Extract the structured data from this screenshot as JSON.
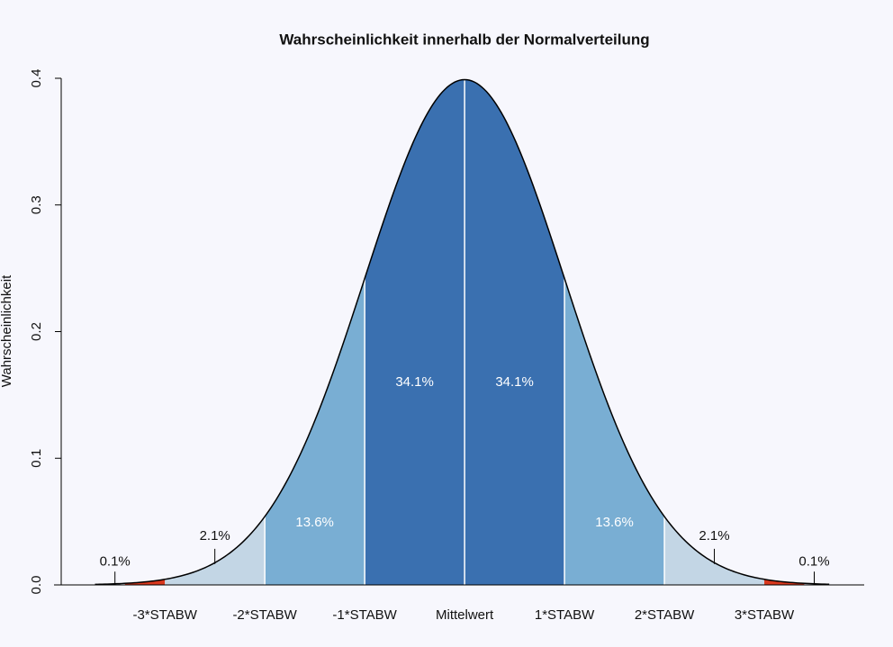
{
  "chart_data": {
    "type": "normal-area",
    "title": "Wahrscheinlichkeit innerhalb der Normalverteilung",
    "ylabel": "Wahrscheinlichkeit",
    "xlim": [
      -4.11,
      4.0
    ],
    "ylim": [
      0,
      0.4
    ],
    "yticks": [
      {
        "value": 0,
        "label": "0.0"
      },
      0.1,
      0.2,
      0.3,
      0.4
    ],
    "xticks": [
      {
        "value": -3,
        "label": "-3*STABW"
      },
      {
        "value": -2,
        "label": "-2*STABW"
      },
      {
        "value": -1,
        "label": "-1*STABW"
      },
      {
        "value": 0,
        "label": "Mittelwert"
      },
      {
        "value": 1,
        "label": "1*STABW"
      },
      {
        "value": 2,
        "label": "2*STABW"
      },
      {
        "value": 3,
        "label": "3*STABW"
      }
    ],
    "curve_x": [
      -3.7,
      3.65
    ],
    "bands": [
      {
        "x": [
          -3.4,
          -3
        ],
        "value": 0.1,
        "value_label": "0.1%",
        "color": "#d9381e"
      },
      {
        "x": [
          -3,
          -2
        ],
        "value": 2.1,
        "value_label": "2.1%",
        "color": "#c3d6e5"
      },
      {
        "x": [
          -2,
          -1
        ],
        "value": 13.6,
        "value_label": "13.6%",
        "color": "#79aed3"
      },
      {
        "x": [
          -1,
          0
        ],
        "value": 34.1,
        "value_label": "34.1%",
        "color": "#3a70b0"
      },
      {
        "x": [
          0,
          1
        ],
        "value": 34.1,
        "value_label": "34.1%",
        "color": "#3a70b0"
      },
      {
        "x": [
          1,
          2
        ],
        "value": 13.6,
        "value_label": "13.6%",
        "color": "#79aed3"
      },
      {
        "x": [
          2,
          3
        ],
        "value": 2.1,
        "value_label": "2.1%",
        "color": "#c3d6e5"
      },
      {
        "x": [
          3,
          3.4
        ],
        "value": 0.1,
        "value_label": "0.1%",
        "color": "#d9381e"
      }
    ]
  }
}
